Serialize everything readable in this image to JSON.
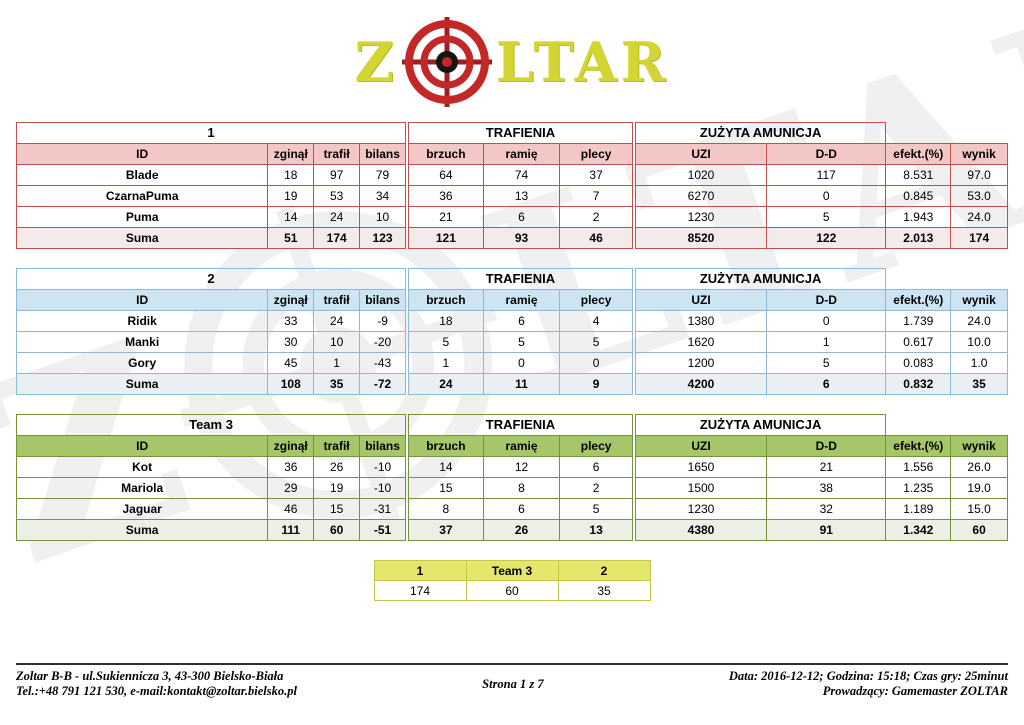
{
  "logo": {
    "left": "Z",
    "right": "LTAR"
  },
  "group_headers": {
    "trafienia": "TRAFIENIA",
    "amunicja": "ZUŻYTA AMUNICJA"
  },
  "columns": [
    "ID",
    "zginął",
    "trafił",
    "bilans",
    "brzuch",
    "ramię",
    "plecy",
    "UZI",
    "D-D",
    "efekt.(%)",
    "wynik"
  ],
  "tables": [
    {
      "name": "1",
      "theme": "red",
      "rows": [
        [
          "Blade",
          "18",
          "97",
          "79",
          "64",
          "74",
          "37",
          "1020",
          "117",
          "8.531",
          "97.0"
        ],
        [
          "CzarnaPuma",
          "19",
          "53",
          "34",
          "36",
          "13",
          "7",
          "6270",
          "0",
          "0.845",
          "53.0"
        ],
        [
          "Puma",
          "14",
          "24",
          "10",
          "21",
          "6",
          "2",
          "1230",
          "5",
          "1.943",
          "24.0"
        ]
      ],
      "suma": [
        "Suma",
        "51",
        "174",
        "123",
        "121",
        "93",
        "46",
        "8520",
        "122",
        "2.013",
        "174"
      ]
    },
    {
      "name": "2",
      "theme": "blue",
      "rows": [
        [
          "Ridik",
          "33",
          "24",
          "-9",
          "18",
          "6",
          "4",
          "1380",
          "0",
          "1.739",
          "24.0"
        ],
        [
          "Manki",
          "30",
          "10",
          "-20",
          "5",
          "5",
          "5",
          "1620",
          "1",
          "0.617",
          "10.0"
        ],
        [
          "Gory",
          "45",
          "1",
          "-43",
          "1",
          "0",
          "0",
          "1200",
          "5",
          "0.083",
          "1.0"
        ]
      ],
      "suma": [
        "Suma",
        "108",
        "35",
        "-72",
        "24",
        "11",
        "9",
        "4200",
        "6",
        "0.832",
        "35"
      ]
    },
    {
      "name": "Team 3",
      "theme": "green",
      "rows": [
        [
          "Kot",
          "36",
          "26",
          "-10",
          "14",
          "12",
          "6",
          "1650",
          "21",
          "1.556",
          "26.0"
        ],
        [
          "Mariola",
          "29",
          "19",
          "-10",
          "15",
          "8",
          "2",
          "1500",
          "38",
          "1.235",
          "19.0"
        ],
        [
          "Jaguar",
          "46",
          "15",
          "-31",
          "8",
          "6",
          "5",
          "1230",
          "32",
          "1.189",
          "15.0"
        ]
      ],
      "suma": [
        "Suma",
        "111",
        "60",
        "-51",
        "37",
        "26",
        "13",
        "4380",
        "91",
        "1.342",
        "60"
      ]
    }
  ],
  "summary": {
    "headers": [
      "1",
      "Team 3",
      "2"
    ],
    "values": [
      "174",
      "60",
      "35"
    ]
  },
  "footer": {
    "address_line1": "Zoltar B-B - ul.Sukiennicza 3, 43-300 Bielsko-Biała",
    "address_line2": "Tel.:+48 791 121 530, e-mail:kontakt@zoltar.bielsko.pl",
    "page": "Strona 1 z 7",
    "info_line1": "Data: 2016-12-12; Godzina: 15:18; Czas gry: 25minut",
    "info_line2": "Prowadzący: Gamemaster ZOLTAR"
  },
  "colors": {
    "team1_border": "#c0504d",
    "team1_header_bg": "#f2c7c5",
    "team2_border": "#8db9d5",
    "team2_header_bg": "#cde5f2",
    "team3_border": "#76923c",
    "team3_header_bg": "#a6c66a",
    "summary_border": "#c3c84d",
    "summary_header_bg": "#e4e76b",
    "logo_text": "#d3d532",
    "logo_target": "#c32727"
  }
}
